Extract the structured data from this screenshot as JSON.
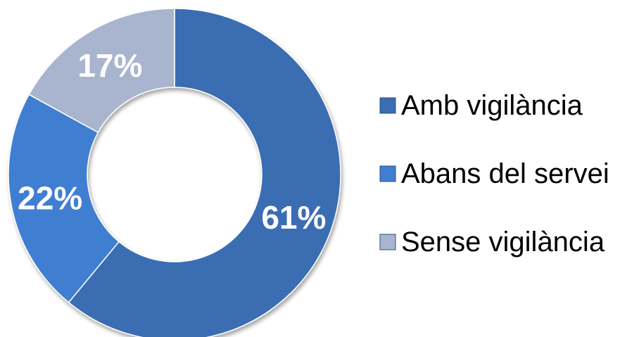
{
  "chart_data": {
    "type": "pie",
    "variant": "donut",
    "title": "",
    "categories": [
      "Amb vigilància",
      "Abans del servei",
      "Sense vigilància"
    ],
    "values": [
      61,
      22,
      17
    ],
    "labels": [
      "61%",
      "22%",
      "17%"
    ],
    "colors": [
      "#3a6db3",
      "#3f7ed1",
      "#a9b5cf"
    ],
    "legend_position": "right",
    "start_angle_deg": 0,
    "direction": "clockwise"
  }
}
